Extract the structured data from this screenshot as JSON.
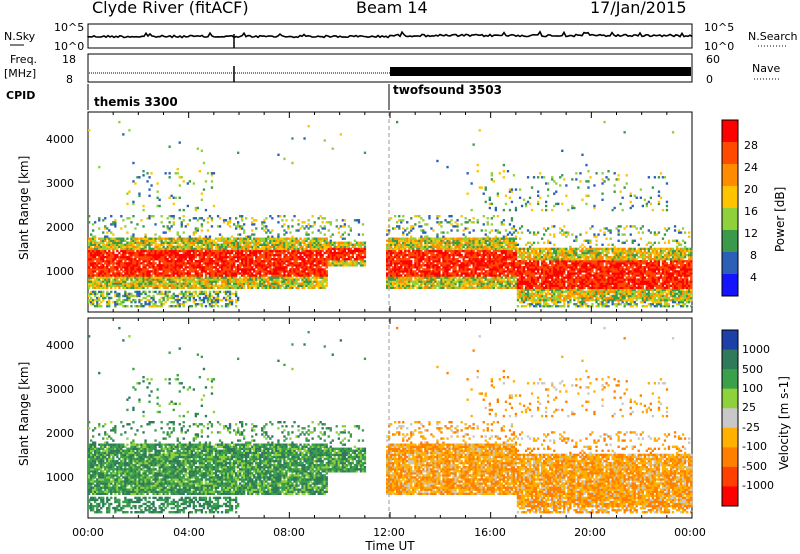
{
  "header": {
    "title": "Clyde River (fitACF)",
    "beam": "Beam 14",
    "date": "17/Jan/2015"
  },
  "strip_sky": {
    "left_label_1": "N.Sky",
    "right_label": "N.Search",
    "tick_top": "10^5",
    "tick_bottom": "10^0",
    "series_color": "#000000"
  },
  "strip_freq": {
    "left_label_1": "Freq.",
    "left_label_2": "[MHz]",
    "tick_top": "18",
    "tick_bottom": "8",
    "right_tick_top": "60",
    "right_tick_bottom": "0",
    "right_label": "Nave"
  },
  "cpid": {
    "label": "CPID",
    "segments": [
      {
        "name": "themis 3300",
        "start_hour": 0
      },
      {
        "name": "twofsound 3503",
        "start_hour": 12
      }
    ]
  },
  "chart_data": [
    {
      "type": "heatmap",
      "name": "power",
      "ylabel": "Slant Range [km]",
      "xlabel": "",
      "xlim_hours": [
        0,
        24
      ],
      "ylim_km": [
        200,
        4600
      ],
      "yticks": [
        "1000",
        "2000",
        "3000",
        "4000"
      ],
      "colorbar": {
        "label": "Power [dB]",
        "tick_labels": [
          "28",
          "24",
          "20",
          "16",
          "12",
          "8",
          "4"
        ],
        "colors": [
          "#ff0000",
          "#ff4a00",
          "#ff8c00",
          "#ffc400",
          "#8fd13a",
          "#3a9a4a",
          "#2c5fb8",
          "#1414ff"
        ],
        "range": [
          0,
          30
        ]
      }
    },
    {
      "type": "heatmap",
      "name": "velocity",
      "ylabel": "Slant Range [km]",
      "xlabel": "Time UT",
      "xlim_hours": [
        0,
        24
      ],
      "ylim_km": [
        200,
        4600
      ],
      "yticks": [
        "1000",
        "2000",
        "3000",
        "4000"
      ],
      "xticks": [
        "00:00",
        "04:00",
        "08:00",
        "12:00",
        "16:00",
        "20:00",
        "00:00"
      ],
      "colorbar": {
        "label": "Velocity [m s-1]",
        "tick_labels": [
          "1000",
          "500",
          "100",
          "25",
          "-25",
          "-100",
          "-500",
          "-1000"
        ],
        "colors": [
          "#1c3fa8",
          "#2f7a5a",
          "#3aa04a",
          "#8fd13a",
          "#c8c8c8",
          "#ffb000",
          "#ff8000",
          "#ff4000",
          "#ff0000"
        ],
        "range": [
          -1000,
          1000
        ]
      }
    }
  ]
}
